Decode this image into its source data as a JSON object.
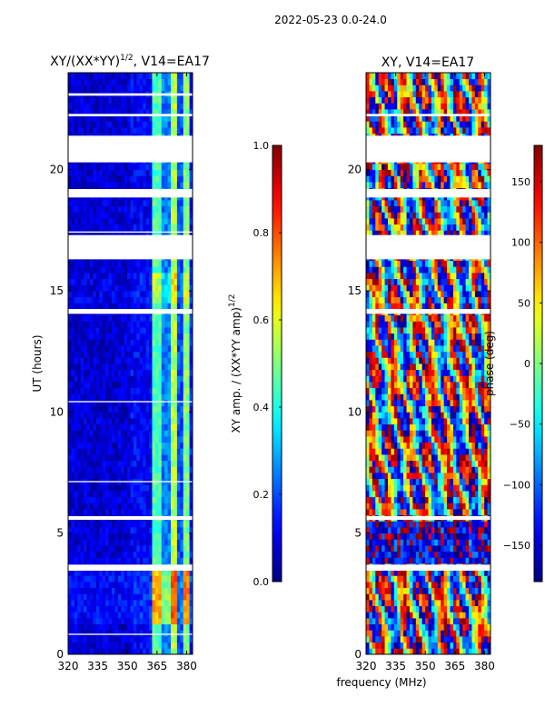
{
  "figure": {
    "suptitle": "2022-05-23 0.0-24.0",
    "shared_xlabel": "frequency (MHz)"
  },
  "chart_data": [
    {
      "type": "heatmap",
      "title_main": "XY/(XX*YY)",
      "title_exp": "1/2",
      "title_tail": ", V14=EA17",
      "xlabel": "frequency (MHz)",
      "ylabel": "UT (hours)",
      "xlim": [
        320,
        383
      ],
      "ylim": [
        0,
        24
      ],
      "xticks": [
        320,
        335,
        350,
        365,
        380
      ],
      "yticks": [
        0,
        5,
        10,
        15,
        20
      ],
      "colorbar": {
        "label_main": "XY amp. / (XX*YY amp)",
        "label_exp": "1/2",
        "range": [
          0.0,
          1.0
        ],
        "ticks": [
          "0.0",
          "0.2",
          "0.4",
          "0.6",
          "0.8",
          "1.0"
        ],
        "tick_values": [
          0,
          0.2,
          0.4,
          0.6,
          0.8,
          1.0
        ],
        "colormap": "jet"
      },
      "blank_time_ranges_hours": [
        [
          0.8,
          0.85
        ],
        [
          3.45,
          3.7
        ],
        [
          5.55,
          5.7
        ],
        [
          7.1,
          7.15
        ],
        [
          10.4,
          10.45
        ],
        [
          14.05,
          14.25
        ],
        [
          16.3,
          17.3
        ],
        [
          17.4,
          17.45
        ],
        [
          18.85,
          19.2
        ],
        [
          20.3,
          21.4
        ],
        [
          22.2,
          22.3
        ],
        [
          23.05,
          23.15
        ]
      ],
      "band_profile_by_freq_mhz": [
        {
          "from": 320,
          "to": 351,
          "level": 0.08
        },
        {
          "from": 351,
          "to": 362,
          "level": 0.12
        },
        {
          "from": 362,
          "to": 367,
          "level": 0.45
        },
        {
          "from": 367,
          "to": 372,
          "level": 0.25
        },
        {
          "from": 372,
          "to": 375,
          "level": 0.55
        },
        {
          "from": 375,
          "to": 378,
          "level": 0.2
        },
        {
          "from": 378,
          "to": 381,
          "level": 0.5
        },
        {
          "from": 381,
          "to": 383,
          "level": 0.15
        }
      ]
    },
    {
      "type": "heatmap",
      "title_main": "XY, V14=EA17",
      "xlabel": "frequency (MHz)",
      "ylabel": "",
      "xlim": [
        320,
        383
      ],
      "ylim": [
        0,
        24
      ],
      "xticks": [
        320,
        335,
        350,
        365,
        380
      ],
      "yticks": [
        0,
        5,
        10,
        15,
        20
      ],
      "colorbar": {
        "label_main": "phase (deg)",
        "range": [
          -180,
          180
        ],
        "ticks": [
          "−150",
          "−100",
          "−50",
          "0",
          "50",
          "100",
          "150"
        ],
        "tick_values": [
          -150,
          -100,
          -50,
          0,
          50,
          100,
          150
        ],
        "colormap": "jet"
      },
      "blank_time_ranges_hours": [
        [
          3.45,
          3.7
        ],
        [
          5.55,
          5.7
        ],
        [
          14.05,
          14.25
        ],
        [
          16.3,
          17.3
        ],
        [
          18.85,
          19.2
        ],
        [
          20.3,
          21.4
        ],
        [
          22.2,
          22.3
        ]
      ]
    }
  ]
}
